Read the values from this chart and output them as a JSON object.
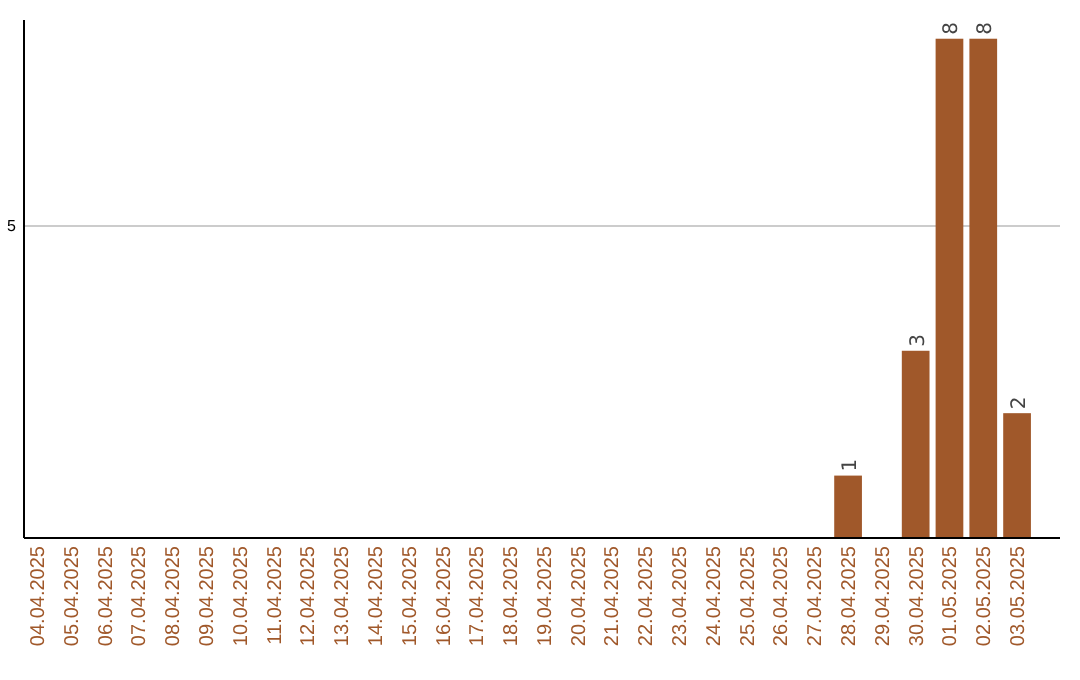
{
  "chart_data": {
    "type": "bar",
    "categories": [
      "04.04.2025",
      "05.04.2025",
      "06.04.2025",
      "07.04.2025",
      "08.04.2025",
      "09.04.2025",
      "10.04.2025",
      "11.04.2025",
      "12.04.2025",
      "13.04.2025",
      "14.04.2025",
      "15.04.2025",
      "16.04.2025",
      "17.04.2025",
      "18.04.2025",
      "19.04.2025",
      "20.04.2025",
      "21.04.2025",
      "22.04.2025",
      "23.04.2025",
      "24.04.2025",
      "25.04.2025",
      "26.04.2025",
      "27.04.2025",
      "28.04.2025",
      "29.04.2025",
      "30.04.2025",
      "01.05.2025",
      "02.05.2025",
      "03.05.2025"
    ],
    "values": [
      null,
      null,
      null,
      null,
      null,
      null,
      null,
      null,
      null,
      null,
      null,
      null,
      null,
      null,
      null,
      null,
      null,
      null,
      null,
      null,
      null,
      null,
      null,
      null,
      1,
      null,
      3,
      8,
      8,
      2
    ],
    "color": "#a0582a",
    "ylim": [
      0,
      8.3
    ],
    "yticks": [
      5
    ],
    "grid": "y",
    "data_labels": true
  }
}
